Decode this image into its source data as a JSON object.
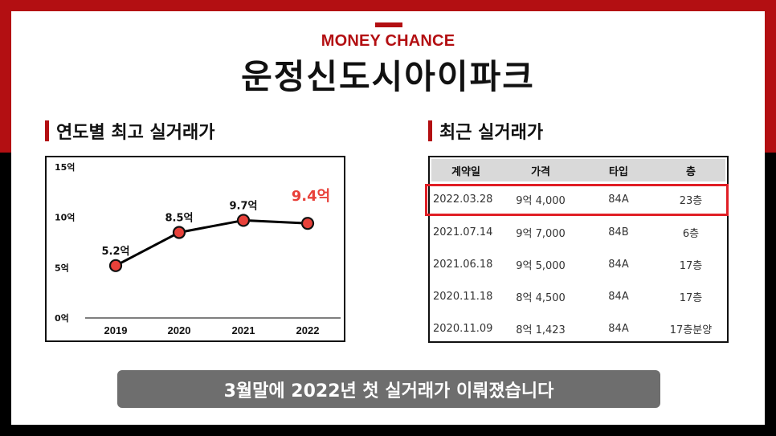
{
  "header": {
    "brand": "MONEY CHANCE",
    "title": "운정신도시아이파크"
  },
  "sections": {
    "left_title": "연도별 최고 실거래가",
    "right_title": "최근 실거래가"
  },
  "chart_data": {
    "type": "line",
    "categories": [
      "2019",
      "2020",
      "2021",
      "2022"
    ],
    "values": [
      5.2,
      8.5,
      9.7,
      9.4
    ],
    "data_labels": [
      "5.2억",
      "8.5억",
      "9.7억",
      "9.4억"
    ],
    "ylim": [
      0,
      15
    ],
    "yticks": [
      0,
      5,
      10,
      15
    ],
    "ytick_labels": [
      "0억",
      "5억",
      "10억",
      "15억"
    ],
    "grid": false,
    "colors": {
      "line": "#000000",
      "marker": "#e8413a",
      "highlight_label": "#e8413a"
    }
  },
  "table": {
    "headers": [
      "계약일",
      "가격",
      "타입",
      "층"
    ],
    "rows": [
      [
        "2022.03.28",
        "9억 4,000",
        "84A",
        "23층"
      ],
      [
        "2021.07.14",
        "9억 7,000",
        "84B",
        "6층"
      ],
      [
        "2021.06.18",
        "9억 5,000",
        "84A",
        "17층"
      ],
      [
        "2020.11.18",
        "8억 4,500",
        "84A",
        "17층"
      ],
      [
        "2020.11.09",
        "8억 1,423",
        "84A",
        "17층분양"
      ]
    ],
    "highlighted_row": 0
  },
  "banner": {
    "text": "3월말에 2022년 첫 실거래가 이뤄졌습니다"
  },
  "colors": {
    "accent": "#b30f12",
    "highlight_border": "#e01e25",
    "banner_bg": "#6e6e6e"
  }
}
